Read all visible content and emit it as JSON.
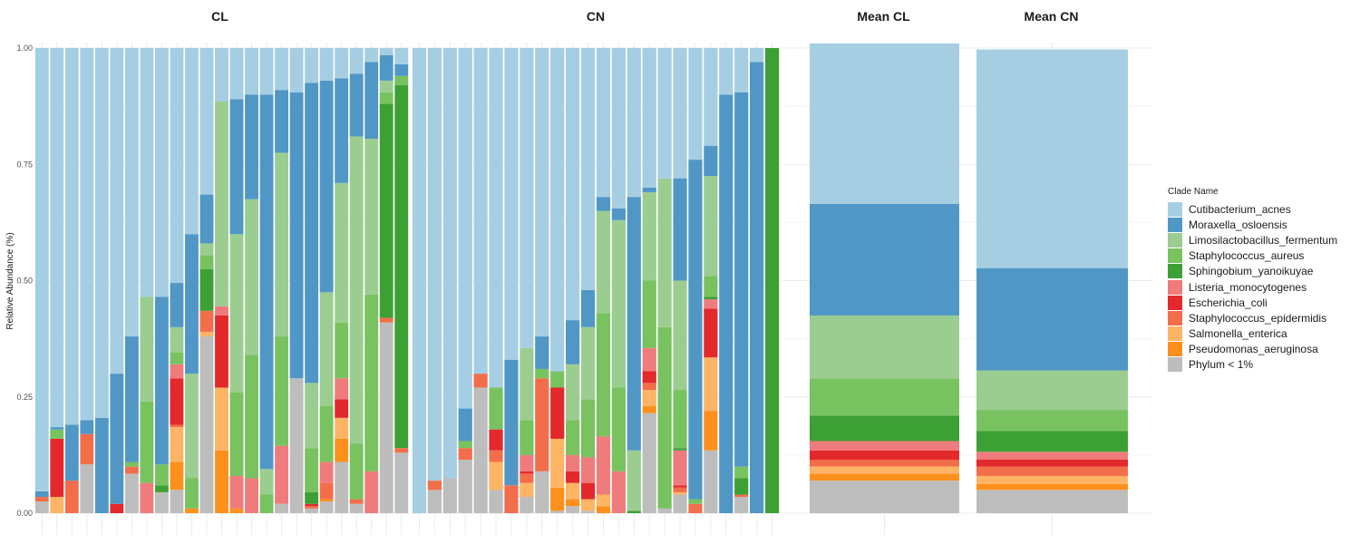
{
  "chart_data": {
    "type": "bar",
    "stacked": true,
    "ylabel": "Relative Abundance (%)",
    "ylim": [
      0,
      1
    ],
    "yticks": [
      "0.00",
      "0.25",
      "0.50",
      "0.75",
      "1.00"
    ],
    "legend": {
      "title": "Clade Name",
      "placement": "right",
      "items": [
        {
          "name": "Cutibacterium_acnes",
          "color": "#A6CEE3"
        },
        {
          "name": "Moraxella_osloensis",
          "color": "#5097C6"
        },
        {
          "name": "Limosilactobacillus_fermentum",
          "color": "#9BCD91"
        },
        {
          "name": "Staphylococcus_aureus",
          "color": "#78C260"
        },
        {
          "name": "Sphingobium_yanoikuyae",
          "color": "#3DA035"
        },
        {
          "name": "Listeria_monocytogenes",
          "color": "#F07B7C"
        },
        {
          "name": "Escherichia_coli",
          "color": "#E3292C"
        },
        {
          "name": "Staphylococcus_epidermidis",
          "color": "#F26E4B"
        },
        {
          "name": "Salmonella_enterica",
          "color": "#FDB465"
        },
        {
          "name": "Pseudomonas_aeruginosa",
          "color": "#FD901D"
        },
        {
          "name": "Phylum < 1%",
          "color": "#BDBDBD"
        }
      ]
    },
    "series_order": [
      "Phylum < 1%",
      "Pseudomonas_aeruginosa",
      "Salmonella_enterica",
      "Staphylococcus_epidermidis",
      "Escherichia_coli",
      "Listeria_monocytogenes",
      "Sphingobium_yanoikuyae",
      "Staphylococcus_aureus",
      "Limosilactobacillus_fermentum",
      "Moraxella_osloensis",
      "Cutibacterium_acnes"
    ],
    "panels": [
      {
        "title": "CL",
        "samples": [
          [
            0.025,
            0,
            0,
            0.01,
            0,
            0,
            0,
            0,
            0,
            0.012,
            0.953
          ],
          [
            0,
            0,
            0.035,
            0,
            0.125,
            0,
            0,
            0.02,
            0,
            0.005,
            0.815
          ],
          [
            0,
            0,
            0,
            0.07,
            0,
            0,
            0,
            0,
            0,
            0.12,
            0.81
          ],
          [
            0.105,
            0,
            0,
            0.065,
            0,
            0,
            0,
            0,
            0,
            0.03,
            0.8
          ],
          [
            0,
            0,
            0,
            0,
            0,
            0,
            0,
            0,
            0,
            0.205,
            0.795
          ],
          [
            0,
            0,
            0,
            0,
            0.02,
            0,
            0,
            0,
            0,
            0.28,
            0.7
          ],
          [
            0.085,
            0,
            0,
            0.015,
            0,
            0,
            0,
            0.01,
            0,
            0.27,
            0.62
          ],
          [
            0,
            0,
            0,
            0,
            0,
            0.065,
            0,
            0.175,
            0.225,
            0,
            0.535
          ],
          [
            0.045,
            0,
            0,
            0,
            0,
            0,
            0.015,
            0.045,
            0,
            0.36,
            0.535
          ],
          [
            0.05,
            0.06,
            0.075,
            0.005,
            0.1,
            0.03,
            0,
            0.025,
            0.055,
            0.095,
            0.505
          ],
          [
            0,
            0.01,
            0,
            0,
            0,
            0,
            0,
            0.065,
            0.225,
            0.3,
            0.4
          ],
          [
            0.38,
            0,
            0.01,
            0.045,
            0,
            0,
            0.09,
            0.03,
            0.025,
            0.105,
            0.315
          ],
          [
            0,
            0.135,
            0.135,
            0,
            0.155,
            0.02,
            0,
            0,
            0.44,
            0,
            0.115
          ],
          [
            0,
            0.01,
            0,
            0,
            0,
            0.07,
            0,
            0.18,
            0.34,
            0.29,
            0.11
          ],
          [
            0,
            0,
            0,
            0,
            0,
            0.075,
            0,
            0.265,
            0.335,
            0.225,
            0.1
          ],
          [
            0,
            0,
            0,
            0,
            0,
            0,
            0,
            0.04,
            0.055,
            0.805,
            0.1
          ],
          [
            0.02,
            0,
            0,
            0,
            0,
            0.125,
            0,
            0.235,
            0.395,
            0.135,
            0.09
          ],
          [
            0.29,
            0,
            0,
            0,
            0,
            0,
            0,
            0,
            0,
            0.615,
            0.095
          ],
          [
            0.01,
            0,
            0,
            0.005,
            0.005,
            0,
            0.025,
            0.095,
            0.14,
            0.645,
            0.075
          ],
          [
            0.025,
            0.005,
            0,
            0.035,
            0,
            0.045,
            0,
            0.12,
            0.245,
            0.455,
            0.07
          ],
          [
            0.11,
            0.05,
            0.045,
            0,
            0.04,
            0.045,
            0,
            0.12,
            0.3,
            0.225,
            0.065
          ],
          [
            0.02,
            0,
            0,
            0.01,
            0,
            0,
            0,
            0.12,
            0.66,
            0.135,
            0.055
          ],
          [
            0,
            0,
            0,
            0,
            0,
            0.09,
            0,
            0.38,
            0.335,
            0.165,
            0.03
          ],
          [
            0.41,
            0,
            0,
            0.01,
            0,
            0,
            0.46,
            0.025,
            0.025,
            0.055,
            0.015
          ],
          [
            0.13,
            0,
            0,
            0.01,
            0,
            0,
            0.78,
            0.02,
            0,
            0.025,
            0.035
          ]
        ]
      },
      {
        "title": "CN",
        "samples": [
          [
            0,
            0,
            0,
            0,
            0,
            0,
            0,
            0,
            0,
            0,
            1
          ],
          [
            0.05,
            0,
            0,
            0.02,
            0,
            0,
            0,
            0,
            0,
            0,
            0.93
          ],
          [
            0.075,
            0,
            0,
            0,
            0,
            0,
            0,
            0,
            0,
            0,
            0.925
          ],
          [
            0.115,
            0,
            0,
            0.025,
            0,
            0,
            0,
            0.015,
            0,
            0.07,
            0.775
          ],
          [
            0.27,
            0,
            0,
            0.03,
            0,
            0,
            0,
            0,
            0,
            0,
            0.7
          ],
          [
            0.05,
            0,
            0.06,
            0.025,
            0.045,
            0,
            0,
            0.09,
            0,
            0,
            0.73
          ],
          [
            0,
            0,
            0,
            0.06,
            0,
            0,
            0,
            0,
            0,
            0.27,
            0.67
          ],
          [
            0.035,
            0,
            0.03,
            0.02,
            0.005,
            0.035,
            0,
            0.075,
            0.155,
            0,
            0.645
          ],
          [
            0.09,
            0,
            0,
            0.2,
            0,
            0,
            0,
            0.02,
            0,
            0.07,
            0.62
          ],
          [
            0.005,
            0.05,
            0.105,
            0,
            0.11,
            0,
            0,
            0.035,
            0,
            0,
            0.695
          ],
          [
            0.015,
            0.015,
            0.035,
            0,
            0.025,
            0.035,
            0,
            0.075,
            0.12,
            0.095,
            0.585
          ],
          [
            0.005,
            0,
            0.025,
            0,
            0.035,
            0.055,
            0,
            0.125,
            0.155,
            0.08,
            0.52
          ],
          [
            0,
            0.015,
            0.025,
            0,
            0,
            0.125,
            0,
            0.265,
            0.22,
            0.03,
            0.32
          ],
          [
            0,
            0,
            0,
            0,
            0,
            0.09,
            0,
            0.18,
            0.36,
            0.025,
            0.345
          ],
          [
            0,
            0,
            0,
            0,
            0,
            0,
            0.005,
            0,
            0.13,
            0.545,
            0.32
          ],
          [
            0.215,
            0.015,
            0.035,
            0.015,
            0.025,
            0.05,
            0,
            0.145,
            0.19,
            0.01,
            0.3
          ],
          [
            0.01,
            0,
            0,
            0,
            0,
            0,
            0,
            0.39,
            0.32,
            0,
            0.28
          ],
          [
            0.04,
            0,
            0.005,
            0.01,
            0.005,
            0.075,
            0.005,
            0.125,
            0.235,
            0.22,
            0.28
          ],
          [
            0,
            0,
            0,
            0.02,
            0,
            0,
            0,
            0.01,
            0,
            0.73,
            0.24
          ],
          [
            0.135,
            0.085,
            0.115,
            0,
            0.105,
            0.02,
            0.005,
            0.045,
            0.215,
            0.065,
            0.21
          ],
          [
            0,
            0,
            0,
            0,
            0,
            0,
            0,
            0,
            0,
            0.9,
            0.1
          ],
          [
            0.035,
            0,
            0,
            0.005,
            0,
            0,
            0.035,
            0.025,
            0,
            0.805,
            0.095
          ],
          [
            0,
            0,
            0,
            0,
            0,
            0,
            0,
            0,
            0,
            0.97,
            0.03
          ],
          [
            0,
            0,
            0,
            0,
            0,
            0,
            1,
            0,
            0,
            0,
            0
          ]
        ]
      },
      {
        "title": "Mean CL",
        "samples": [
          [
            0.07,
            0.015,
            0.015,
            0.015,
            0.02,
            0.02,
            0.055,
            0.08,
            0.135,
            0.24,
            0.345
          ]
        ]
      },
      {
        "title": "Mean CN",
        "samples": [
          [
            0.05,
            0.013,
            0.017,
            0.02,
            0.015,
            0.017,
            0.045,
            0.045,
            0.085,
            0.22,
            0.47
          ]
        ]
      }
    ]
  }
}
